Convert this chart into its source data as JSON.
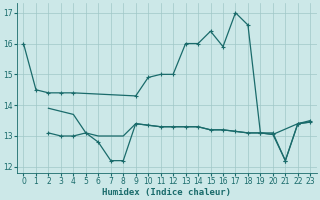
{
  "xlabel": "Humidex (Indice chaleur)",
  "xlim": [
    -0.5,
    23.5
  ],
  "ylim": [
    11.8,
    17.3
  ],
  "yticks": [
    12,
    13,
    14,
    15,
    16,
    17
  ],
  "xticks": [
    0,
    1,
    2,
    3,
    4,
    5,
    6,
    7,
    8,
    9,
    10,
    11,
    12,
    13,
    14,
    15,
    16,
    17,
    18,
    19,
    20,
    21,
    22,
    23
  ],
  "bg_color": "#cce8e8",
  "grid_color": "#a0c8c8",
  "line_color": "#1a6b6b",
  "line1_x": [
    0,
    1,
    2,
    3,
    4,
    9,
    10,
    11,
    12,
    13,
    14,
    15,
    16,
    17,
    18,
    19,
    20,
    21,
    22,
    23
  ],
  "line1_y": [
    16.0,
    14.5,
    14.4,
    14.4,
    14.4,
    14.3,
    14.9,
    15.0,
    15.0,
    16.0,
    16.0,
    16.4,
    15.9,
    17.0,
    16.6,
    13.1,
    13.1,
    12.2,
    13.4,
    13.5
  ],
  "line2_x": [
    2,
    3,
    4,
    5,
    6,
    7,
    8,
    9,
    10,
    11,
    12,
    13,
    14,
    15,
    16,
    17,
    18,
    19,
    20,
    22,
    23
  ],
  "line2_y": [
    13.9,
    13.8,
    13.7,
    13.1,
    13.0,
    13.0,
    13.0,
    13.4,
    13.35,
    13.3,
    13.3,
    13.3,
    13.3,
    13.2,
    13.2,
    13.15,
    13.1,
    13.1,
    13.05,
    13.4,
    13.45
  ],
  "line3_x": [
    2,
    3,
    4,
    5,
    6,
    7,
    8,
    9,
    10,
    11,
    12,
    13,
    14,
    15,
    16,
    17,
    18,
    19,
    20,
    21,
    22,
    23
  ],
  "line3_y": [
    13.1,
    13.0,
    13.0,
    13.1,
    12.8,
    12.2,
    12.2,
    13.4,
    13.35,
    13.3,
    13.3,
    13.3,
    13.3,
    13.2,
    13.2,
    13.15,
    13.1,
    13.1,
    13.05,
    12.2,
    13.4,
    13.45
  ]
}
